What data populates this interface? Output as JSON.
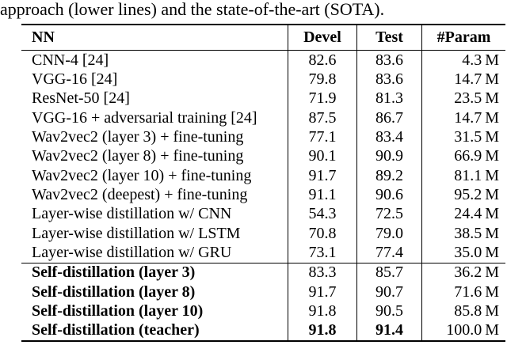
{
  "caption_fragment": "approach (lower lines) and the state-of-the-art (SOTA).",
  "table": {
    "headers": {
      "nn": "NN",
      "devel": "Devel",
      "test": "Test",
      "param": "#Param"
    },
    "rows": [
      {
        "nn": "CNN-4 [24]",
        "devel": "82.6",
        "test": "83.6",
        "param": "4.3 M"
      },
      {
        "nn": "VGG-16 [24]",
        "devel": "79.8",
        "test": "83.6",
        "param": "14.7 M"
      },
      {
        "nn": "ResNet-50 [24]",
        "devel": "71.9",
        "test": "81.3",
        "param": "23.5 M"
      },
      {
        "nn": "VGG-16 + adversarial training [24]",
        "devel": "87.5",
        "test": "86.7",
        "param": "14.7 M"
      },
      {
        "nn": "Wav2vec2 (layer 3) + fine-tuning",
        "devel": "77.1",
        "test": "83.4",
        "param": "31.5 M"
      },
      {
        "nn": "Wav2vec2 (layer 8) + fine-tuning",
        "devel": "90.1",
        "test": "90.9",
        "param": "66.9 M"
      },
      {
        "nn": "Wav2vec2 (layer 10) + fine-tuning",
        "devel": "91.7",
        "test": "89.2",
        "param": "81.1 M"
      },
      {
        "nn": "Wav2vec2 (deepest) + fine-tuning",
        "devel": "91.1",
        "test": "90.6",
        "param": "95.2 M"
      },
      {
        "nn": "Layer-wise distillation w/ CNN",
        "devel": "54.3",
        "test": "72.5",
        "param": "24.4 M"
      },
      {
        "nn": "Layer-wise distillation w/ LSTM",
        "devel": "70.8",
        "test": "79.0",
        "param": "38.5 M"
      },
      {
        "nn": "Layer-wise distillation w/ GRU",
        "devel": "73.1",
        "test": "77.4",
        "param": "35.0 M"
      },
      {
        "nn": "Self-distillation (layer 3)",
        "devel": "83.3",
        "test": "85.7",
        "param": "36.2 M"
      },
      {
        "nn": "Self-distillation (layer 8)",
        "devel": "91.7",
        "test": "90.7",
        "param": "71.6 M"
      },
      {
        "nn": "Self-distillation (layer 10)",
        "devel": "91.8",
        "test": "90.5",
        "param": "85.8 M"
      },
      {
        "nn": "Self-distillation (teacher)",
        "devel": "91.8",
        "test": "91.4",
        "param": "100.0 M"
      }
    ]
  }
}
